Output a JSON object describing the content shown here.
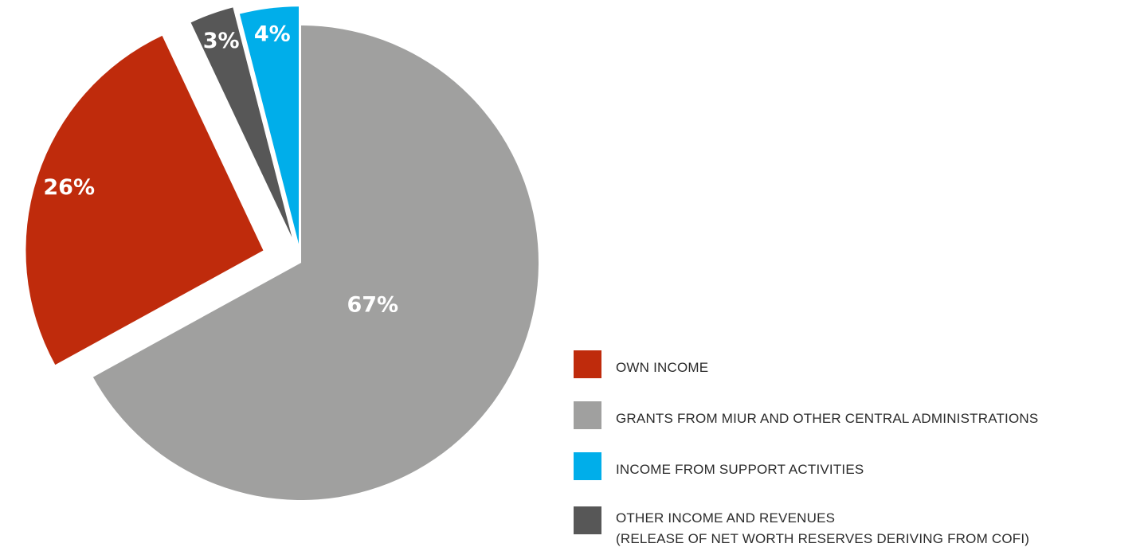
{
  "chart_data": {
    "type": "pie",
    "slices": [
      {
        "label": "GRANTS FROM MIUR AND OTHER CENTRAL ADMINISTRATIONS",
        "value": 67,
        "value_label": "67%",
        "color": "#a0a09f",
        "exploded": false
      },
      {
        "label": "OWN INCOME",
        "value": 26,
        "value_label": "26%",
        "color": "#bf2b0c",
        "exploded": true
      },
      {
        "label": "OTHER INCOME AND REVENUES (RELEASE OF NET WORTH RESERVES DERIVING FROM COFI)",
        "value": 3,
        "value_label": "3%",
        "color": "#575757",
        "exploded": true
      },
      {
        "label": "INCOME FROM SUPPORT ACTIVITIES",
        "value": 4,
        "value_label": "4%",
        "color": "#00aeea",
        "exploded": true
      }
    ],
    "legend_position": "bottom-right",
    "legend": [
      {
        "label": "OWN INCOME",
        "color": "#bf2b0c"
      },
      {
        "label": "GRANTS FROM MIUR AND OTHER CENTRAL ADMINISTRATIONS",
        "color": "#a0a09f"
      },
      {
        "label": "INCOME FROM SUPPORT ACTIVITIES",
        "color": "#00aeea"
      },
      {
        "label": "OTHER INCOME AND REVENUES",
        "label_line2": "(RELEASE OF NET WORTH RESERVES DERIVING FROM COFI)",
        "color": "#575757"
      }
    ]
  }
}
